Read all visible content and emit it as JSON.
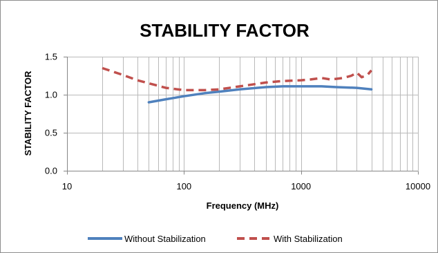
{
  "chart_data": {
    "type": "line",
    "title": "STABILITY FACTOR",
    "xlabel": "Frequency (MHz)",
    "ylabel": "STABILITY FACTOR",
    "x_scale": "log",
    "xlim": [
      10,
      10000
    ],
    "ylim": [
      0.0,
      1.5
    ],
    "x_ticks": [
      10,
      100,
      1000,
      10000
    ],
    "x_tick_labels": [
      "10",
      "100",
      "1000",
      "10000"
    ],
    "y_ticks": [
      0.0,
      0.5,
      1.0,
      1.5
    ],
    "y_tick_labels": [
      "0.0",
      "0.5",
      "1.0",
      "1.5"
    ],
    "grid": {
      "x_minor": true,
      "y_major": true
    },
    "legend": "bottom",
    "series": [
      {
        "name": "Without Stabilization",
        "color": "#4f81bd",
        "style": "solid",
        "points": [
          [
            50,
            0.9
          ],
          [
            70,
            0.94
          ],
          [
            100,
            0.98
          ],
          [
            150,
            1.02
          ],
          [
            200,
            1.04
          ],
          [
            300,
            1.07
          ],
          [
            500,
            1.1
          ],
          [
            700,
            1.11
          ],
          [
            1000,
            1.11
          ],
          [
            1500,
            1.11
          ],
          [
            2000,
            1.1
          ],
          [
            3000,
            1.09
          ],
          [
            4000,
            1.07
          ]
        ]
      },
      {
        "name": "With Stabilization",
        "color": "#c0504d",
        "style": "dashed",
        "points": [
          [
            20,
            1.35
          ],
          [
            30,
            1.26
          ],
          [
            40,
            1.19
          ],
          [
            50,
            1.15
          ],
          [
            70,
            1.09
          ],
          [
            100,
            1.06
          ],
          [
            150,
            1.06
          ],
          [
            200,
            1.07
          ],
          [
            300,
            1.11
          ],
          [
            500,
            1.16
          ],
          [
            700,
            1.18
          ],
          [
            1000,
            1.19
          ],
          [
            1200,
            1.2
          ],
          [
            1500,
            1.22
          ],
          [
            1800,
            1.2
          ],
          [
            2300,
            1.22
          ],
          [
            2700,
            1.25
          ],
          [
            3000,
            1.29
          ],
          [
            3300,
            1.23
          ],
          [
            3700,
            1.26
          ],
          [
            4000,
            1.32
          ]
        ]
      }
    ]
  }
}
